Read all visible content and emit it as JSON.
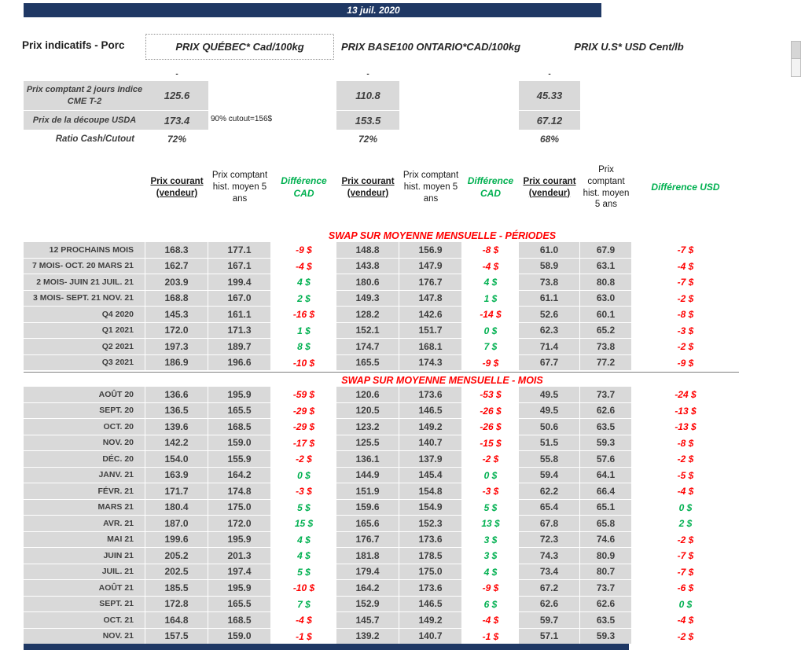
{
  "banner": {
    "date": "13 juil. 2020"
  },
  "page_title": "Prix indicatifs - Porc",
  "groups": {
    "quebec": "PRIX QUÉBEC* Cad/100kg",
    "ontario": "PRIX BASE100 ONTARIO*CAD/100kg",
    "us": "PRIX U.S* USD Cent/lb"
  },
  "placeholders": {
    "dash": "-"
  },
  "spot": {
    "rows": [
      {
        "label": "Prix comptant 2 jours Indice CME T-2",
        "quebec": "125.6",
        "ontario": "110.8",
        "us": "45.33"
      },
      {
        "label": "Prix de la découpe USDA",
        "note": "90% cutout=156$",
        "quebec": "173.4",
        "ontario": "153.5",
        "us": "67.12"
      },
      {
        "label": "Ratio Cash/Cutout",
        "quebec": "72%",
        "ontario": "72%",
        "us": "68%"
      }
    ]
  },
  "column_headers": {
    "current": "Prix courant (vendeur)",
    "hist": "Prix comptant hist. moyen 5 ans",
    "diff_cad": "Différence CAD",
    "diff_usd": "Différence USD"
  },
  "colors": {
    "banner_navy": "#1F3864",
    "title_red": "#FF0000",
    "negative_red": "#FF0000",
    "positive_green": "#00B050",
    "cell_gray": "#D9D9D9"
  },
  "sections": [
    {
      "title": "SWAP SUR MOYENNE MENSUELLE - PÉRIODES",
      "rows": [
        {
          "label": "12 PROCHAINS MOIS",
          "values": [
            "168.3",
            "177.1",
            "-9 $",
            "148.8",
            "156.9",
            "-8 $",
            "61.0",
            "67.9",
            "-7 $"
          ]
        },
        {
          "label": "7 MOIS- OCT. 20 MARS 21",
          "values": [
            "162.7",
            "167.1",
            "-4 $",
            "143.8",
            "147.9",
            "-4 $",
            "58.9",
            "63.1",
            "-4 $"
          ]
        },
        {
          "label": "2 MOIS- JUIN 21 JUIL. 21",
          "values": [
            "203.9",
            "199.4",
            "4 $",
            "180.6",
            "176.7",
            "4 $",
            "73.8",
            "80.8",
            "-7 $"
          ]
        },
        {
          "label": "3 MOIS- SEPT. 21 NOV. 21",
          "values": [
            "168.8",
            "167.0",
            "2 $",
            "149.3",
            "147.8",
            "1 $",
            "61.1",
            "63.0",
            "-2 $"
          ]
        },
        {
          "label": "Q4 2020",
          "values": [
            "145.3",
            "161.1",
            "-16 $",
            "128.2",
            "142.6",
            "-14 $",
            "52.6",
            "60.1",
            "-8 $"
          ]
        },
        {
          "label": "Q1 2021",
          "values": [
            "172.0",
            "171.3",
            "1 $",
            "152.1",
            "151.7",
            "0 $",
            "62.3",
            "65.2",
            "-3 $"
          ]
        },
        {
          "label": "Q2 2021",
          "values": [
            "197.3",
            "189.7",
            "8 $",
            "174.7",
            "168.1",
            "7 $",
            "71.4",
            "73.8",
            "-2 $"
          ]
        },
        {
          "label": "Q3 2021",
          "values": [
            "186.9",
            "196.6",
            "-10 $",
            "165.5",
            "174.3",
            "-9 $",
            "67.7",
            "77.2",
            "-9 $"
          ]
        }
      ]
    },
    {
      "title": "SWAP SUR MOYENNE MENSUELLE - MOIS",
      "rows": [
        {
          "label": "AOÛT 20",
          "values": [
            "136.6",
            "195.9",
            "-59 $",
            "120.6",
            "173.6",
            "-53 $",
            "49.5",
            "73.7",
            "-24 $"
          ]
        },
        {
          "label": "SEPT. 20",
          "values": [
            "136.5",
            "165.5",
            "-29 $",
            "120.5",
            "146.5",
            "-26 $",
            "49.5",
            "62.6",
            "-13 $"
          ]
        },
        {
          "label": "OCT. 20",
          "values": [
            "139.6",
            "168.5",
            "-29 $",
            "123.2",
            "149.2",
            "-26 $",
            "50.6",
            "63.5",
            "-13 $"
          ]
        },
        {
          "label": "NOV. 20",
          "values": [
            "142.2",
            "159.0",
            "-17 $",
            "125.5",
            "140.7",
            "-15 $",
            "51.5",
            "59.3",
            "-8 $"
          ]
        },
        {
          "label": "DÉC. 20",
          "values": [
            "154.0",
            "155.9",
            "-2 $",
            "136.1",
            "137.9",
            "-2 $",
            "55.8",
            "57.6",
            "-2 $"
          ]
        },
        {
          "label": "JANV. 21",
          "values": [
            "163.9",
            "164.2",
            "0 $",
            "144.9",
            "145.4",
            "0 $",
            "59.4",
            "64.1",
            "-5 $"
          ]
        },
        {
          "label": "FÉVR. 21",
          "values": [
            "171.7",
            "174.8",
            "-3 $",
            "151.9",
            "154.8",
            "-3 $",
            "62.2",
            "66.4",
            "-4 $"
          ]
        },
        {
          "label": "MARS 21",
          "values": [
            "180.4",
            "175.0",
            "5 $",
            "159.6",
            "154.9",
            "5 $",
            "65.4",
            "65.1",
            "0 $"
          ]
        },
        {
          "label": "AVR. 21",
          "values": [
            "187.0",
            "172.0",
            "15 $",
            "165.6",
            "152.3",
            "13 $",
            "67.8",
            "65.8",
            "2 $"
          ]
        },
        {
          "label": "MAI 21",
          "values": [
            "199.6",
            "195.9",
            "4 $",
            "176.7",
            "173.6",
            "3 $",
            "72.3",
            "74.6",
            "-2 $"
          ]
        },
        {
          "label": "JUIN 21",
          "values": [
            "205.2",
            "201.3",
            "4 $",
            "181.8",
            "178.5",
            "3 $",
            "74.3",
            "80.9",
            "-7 $"
          ]
        },
        {
          "label": "JUIL. 21",
          "values": [
            "202.5",
            "197.4",
            "5 $",
            "179.4",
            "175.0",
            "4 $",
            "73.4",
            "80.7",
            "-7 $"
          ]
        },
        {
          "label": "AOÛT 21",
          "values": [
            "185.5",
            "195.9",
            "-10 $",
            "164.2",
            "173.6",
            "-9 $",
            "67.2",
            "73.7",
            "-6 $"
          ]
        },
        {
          "label": "SEPT. 21",
          "values": [
            "172.8",
            "165.5",
            "7 $",
            "152.9",
            "146.5",
            "6 $",
            "62.6",
            "62.6",
            "0 $"
          ]
        },
        {
          "label": "OCT. 21",
          "values": [
            "164.8",
            "168.5",
            "-4 $",
            "145.7",
            "149.2",
            "-4 $",
            "59.7",
            "63.5",
            "-4 $"
          ]
        },
        {
          "label": "NOV. 21",
          "values": [
            "157.5",
            "159.0",
            "-1 $",
            "139.2",
            "140.7",
            "-1 $",
            "57.1",
            "59.3",
            "-2 $"
          ]
        }
      ]
    }
  ]
}
